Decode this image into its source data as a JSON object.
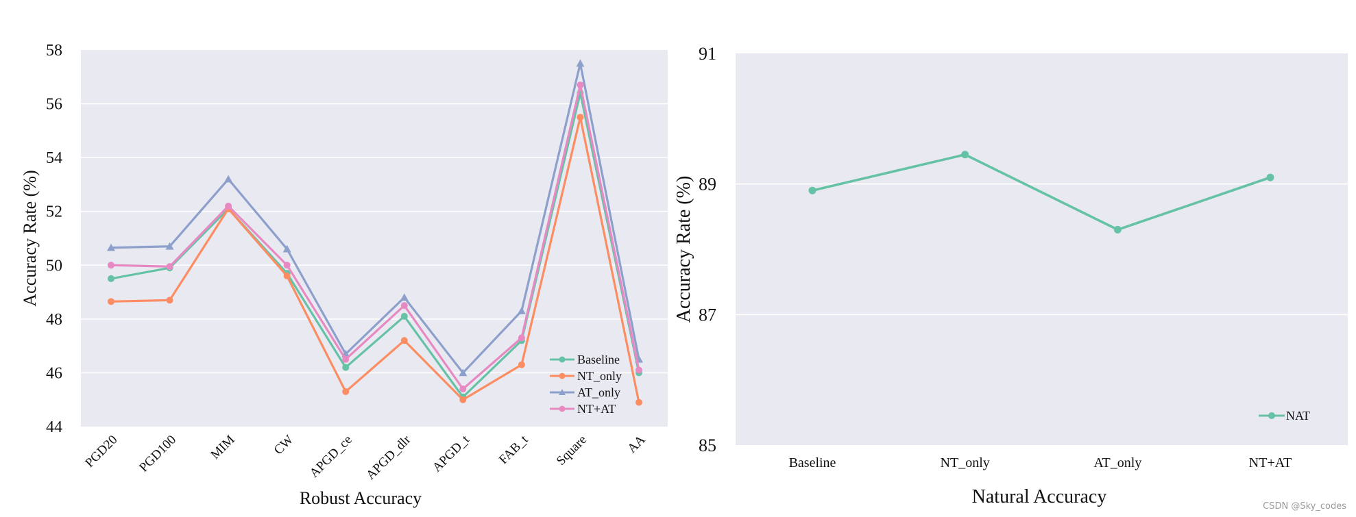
{
  "colors": {
    "plot_bg": "#E9E9F1",
    "grid": "#FFFFFF",
    "Baseline": "#66C2A5",
    "NT_only": "#FC8D62",
    "AT_only": "#8DA0CB",
    "NT+AT": "#E78AC3",
    "NAT": "#66C2A5"
  },
  "chart_data": [
    {
      "type": "line",
      "xlabel": "Robust Accuracy",
      "ylabel": "Accuracy Rate (%)",
      "categories": [
        "PGD20",
        "PGD100",
        "MIM",
        "CW",
        "APGD_ce",
        "APGD_dlr",
        "APGD_t",
        "FAB_t",
        "Square",
        "AA"
      ],
      "ylim": [
        44,
        58
      ],
      "yticks": [
        "44",
        "46",
        "48",
        "50",
        "52",
        "54",
        "56",
        "58"
      ],
      "grid": true,
      "legend": "bottom-right",
      "series": [
        {
          "name": "Baseline",
          "marker": "circle",
          "values": [
            49.5,
            49.9,
            52.1,
            49.7,
            46.2,
            48.1,
            45.1,
            47.2,
            56.4,
            46.0
          ]
        },
        {
          "name": "NT_only",
          "marker": "circle",
          "values": [
            48.65,
            48.7,
            52.1,
            49.6,
            45.3,
            47.2,
            45.0,
            46.3,
            55.5,
            44.9
          ]
        },
        {
          "name": "AT_only",
          "marker": "triangle",
          "values": [
            50.65,
            50.7,
            53.2,
            50.6,
            46.7,
            48.8,
            46.0,
            48.3,
            57.5,
            46.5
          ]
        },
        {
          "name": "NT+AT",
          "marker": "circle",
          "values": [
            50.0,
            49.95,
            52.2,
            50.0,
            46.5,
            48.5,
            45.4,
            47.3,
            56.7,
            46.1
          ]
        }
      ]
    },
    {
      "type": "line",
      "xlabel": "Natural Accuracy",
      "ylabel": "Accuracy Rate (%)",
      "categories": [
        "Baseline",
        "NT_only",
        "AT_only",
        "NT+AT"
      ],
      "ylim": [
        85,
        91
      ],
      "yticks": [
        "85",
        "87",
        "89",
        "91"
      ],
      "grid": true,
      "legend": "bottom-right",
      "series": [
        {
          "name": "NAT",
          "marker": "circle",
          "values": [
            88.9,
            89.45,
            88.3,
            89.1
          ]
        }
      ]
    }
  ],
  "watermark": "CSDN @Sky_codes"
}
